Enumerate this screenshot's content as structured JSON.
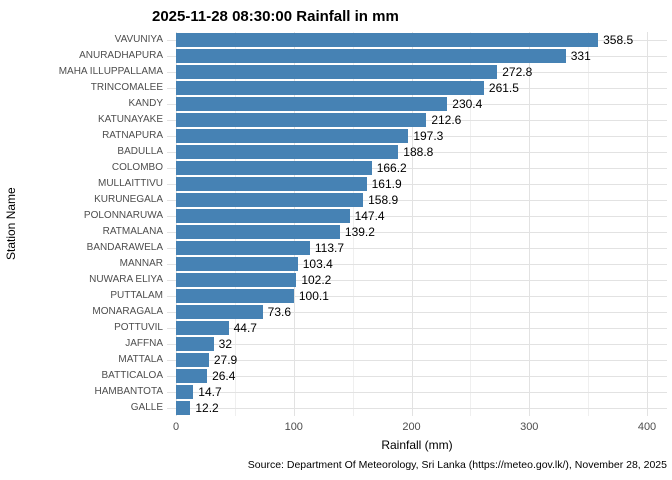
{
  "title": "2025-11-28 08:30:00 Rainfall in mm",
  "caption": "Source: Department Of Meteorology, Sri Lanka (https://meteo.gov.lk/), November 28, 2025",
  "chart_data": {
    "type": "bar",
    "orientation": "horizontal",
    "title": "2025-11-28 08:30:00 Rainfall in mm",
    "xlabel": "Rainfall (mm)",
    "ylabel": "Station Name",
    "xlim": [
      0,
      400
    ],
    "x_ticks": [
      0,
      100,
      200,
      300,
      400
    ],
    "x_minor_ticks": [
      50,
      150,
      250,
      350
    ],
    "grid": true,
    "legend": false,
    "bar_color": "#4682B4",
    "categories": [
      "VAVUNIYA",
      "ANURADHAPURA",
      "MAHA ILLUPPALLAMA",
      "TRINCOMALEE",
      "KANDY",
      "KATUNAYAKE",
      "RATNAPURA",
      "BADULLA",
      "COLOMBO",
      "MULLAITTIVU",
      "KURUNEGALA",
      "POLONNARUWA",
      "RATMALANA",
      "BANDARAWELA",
      "MANNAR",
      "NUWARA ELIYA",
      "PUTTALAM",
      "MONARAGALA",
      "POTTUVIL",
      "JAFFNA",
      "MATTALA",
      "BATTICALOA",
      "HAMBANTOTA",
      "GALLE"
    ],
    "values": [
      358.5,
      331,
      272.8,
      261.5,
      230.4,
      212.6,
      197.3,
      188.8,
      166.2,
      161.9,
      158.9,
      147.4,
      139.2,
      113.7,
      103.4,
      102.2,
      100.1,
      73.6,
      44.7,
      32,
      27.9,
      26.4,
      14.7,
      12.2
    ]
  }
}
